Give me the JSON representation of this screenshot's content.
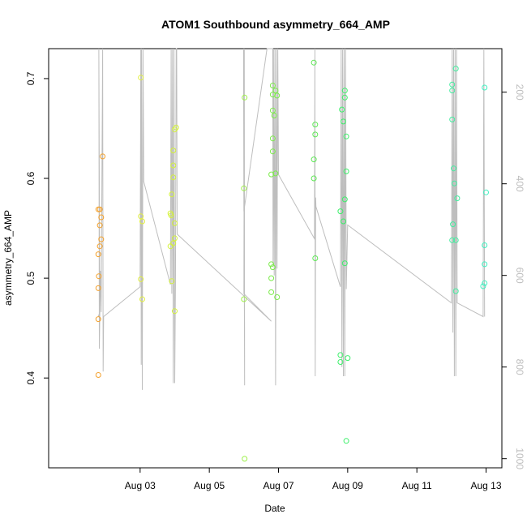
{
  "chart_data": {
    "type": "scatter",
    "title": "ATOM1 Southbound asymmetry_664_AMP",
    "xlabel": "Date",
    "ylabel": "asymmetry_664_AMP",
    "xlim": [
      "2017-08-01",
      "2017-08-13"
    ],
    "ylim": [
      0.31,
      0.73
    ],
    "x_ticks": [
      "Aug 03",
      "Aug 05",
      "Aug 07",
      "Aug 09",
      "Aug 11",
      "Aug 13"
    ],
    "x_tick_dates": [
      "2017-08-03",
      "2017-08-05",
      "2017-08-07",
      "2017-08-09",
      "2017-08-11",
      "2017-08-13"
    ],
    "y_ticks": [
      "0.4",
      "0.5",
      "0.6",
      "0.7"
    ],
    "y2_ticks": [
      "200",
      "400",
      "600",
      "800",
      "1000"
    ],
    "y2_tick_values": [
      200,
      400,
      600,
      800,
      1000
    ],
    "y2lim": [
      1020,
      105
    ],
    "grid": false,
    "points": [
      {
        "d": "2017-08-01T19:00",
        "y": 0.403,
        "c": "#f4a22e"
      },
      {
        "d": "2017-08-01T19:00",
        "y": 0.459,
        "c": "#f4a22e"
      },
      {
        "d": "2017-08-01T19:00",
        "y": 0.49,
        "c": "#f4a22e"
      },
      {
        "d": "2017-08-01T19:20",
        "y": 0.502,
        "c": "#f4a22e"
      },
      {
        "d": "2017-08-01T19:00",
        "y": 0.524,
        "c": "#f4a22e"
      },
      {
        "d": "2017-08-01T20:00",
        "y": 0.532,
        "c": "#f4a22e"
      },
      {
        "d": "2017-08-01T21:00",
        "y": 0.539,
        "c": "#f4a22e"
      },
      {
        "d": "2017-08-01T20:00",
        "y": 0.553,
        "c": "#f4a22e"
      },
      {
        "d": "2017-08-01T21:00",
        "y": 0.561,
        "c": "#f4a22e"
      },
      {
        "d": "2017-08-01T19:00",
        "y": 0.569,
        "c": "#f4a22e"
      },
      {
        "d": "2017-08-01T20:00",
        "y": 0.569,
        "c": "#f4a22e"
      },
      {
        "d": "2017-08-01T22:00",
        "y": 0.622,
        "c": "#f4a22e"
      },
      {
        "d": "2017-08-03T00:30",
        "y": 0.701,
        "c": "#e2ef3f"
      },
      {
        "d": "2017-08-03T00:30",
        "y": 0.562,
        "c": "#e2ef3f"
      },
      {
        "d": "2017-08-03T01:30",
        "y": 0.557,
        "c": "#e2ef3f"
      },
      {
        "d": "2017-08-03T00:30",
        "y": 0.499,
        "c": "#e2ef3f"
      },
      {
        "d": "2017-08-03T01:30",
        "y": 0.479,
        "c": "#e2ef3f"
      },
      {
        "d": "2017-08-03T21:00",
        "y": 0.565,
        "c": "#d4f23a"
      },
      {
        "d": "2017-08-03T21:30",
        "y": 0.563,
        "c": "#d4f23a"
      },
      {
        "d": "2017-08-03T21:00",
        "y": 0.532,
        "c": "#d4f23a"
      },
      {
        "d": "2017-08-03T22:00",
        "y": 0.584,
        "c": "#d4f23a"
      },
      {
        "d": "2017-08-03T23:00",
        "y": 0.601,
        "c": "#d4f23a"
      },
      {
        "d": "2017-08-03T23:00",
        "y": 0.613,
        "c": "#d4f23a"
      },
      {
        "d": "2017-08-03T23:00",
        "y": 0.628,
        "c": "#d4f23a"
      },
      {
        "d": "2017-08-04T00:00",
        "y": 0.649,
        "c": "#d4f23a"
      },
      {
        "d": "2017-08-04T01:00",
        "y": 0.651,
        "c": "#d4f23a"
      },
      {
        "d": "2017-08-04T00:00",
        "y": 0.555,
        "c": "#d4f23a"
      },
      {
        "d": "2017-08-04T00:00",
        "y": 0.54,
        "c": "#d4f23a"
      },
      {
        "d": "2017-08-03T23:00",
        "y": 0.535,
        "c": "#d4f23a"
      },
      {
        "d": "2017-08-03T22:00",
        "y": 0.497,
        "c": "#d4f23a"
      },
      {
        "d": "2017-08-04T00:00",
        "y": 0.467,
        "c": "#d4f23a"
      },
      {
        "d": "2017-08-06T00:30",
        "y": 0.681,
        "c": "#9df048"
      },
      {
        "d": "2017-08-06T00:00",
        "y": 0.59,
        "c": "#9df048"
      },
      {
        "d": "2017-08-06T00:00",
        "y": 0.479,
        "c": "#9df048"
      },
      {
        "d": "2017-08-06T00:30",
        "y": 0.319,
        "c": "#9df048"
      },
      {
        "d": "2017-08-06T19:00",
        "y": 0.604,
        "c": "#7bec4a"
      },
      {
        "d": "2017-08-06T19:00",
        "y": 0.514,
        "c": "#7bec4a"
      },
      {
        "d": "2017-08-06T20:00",
        "y": 0.511,
        "c": "#7bec4a"
      },
      {
        "d": "2017-08-06T19:00",
        "y": 0.5,
        "c": "#7bec4a"
      },
      {
        "d": "2017-08-06T19:00",
        "y": 0.486,
        "c": "#7bec4a"
      },
      {
        "d": "2017-08-06T23:00",
        "y": 0.481,
        "c": "#7bec4a"
      },
      {
        "d": "2017-08-06T20:00",
        "y": 0.64,
        "c": "#7bec4a"
      },
      {
        "d": "2017-08-06T20:00",
        "y": 0.627,
        "c": "#7bec4a"
      },
      {
        "d": "2017-08-06T21:00",
        "y": 0.663,
        "c": "#7bec4a"
      },
      {
        "d": "2017-08-06T20:00",
        "y": 0.668,
        "c": "#7bec4a"
      },
      {
        "d": "2017-08-06T20:00",
        "y": 0.684,
        "c": "#7bec4a"
      },
      {
        "d": "2017-08-06T20:00",
        "y": 0.693,
        "c": "#7bec4a"
      },
      {
        "d": "2017-08-06T22:00",
        "y": 0.688,
        "c": "#7bec4a"
      },
      {
        "d": "2017-08-06T23:00",
        "y": 0.683,
        "c": "#7bec4a"
      },
      {
        "d": "2017-08-06T22:00",
        "y": 0.605,
        "c": "#7bec4a"
      },
      {
        "d": "2017-08-08T00:30",
        "y": 0.716,
        "c": "#5ee955"
      },
      {
        "d": "2017-08-08T01:30",
        "y": 0.654,
        "c": "#5ee955"
      },
      {
        "d": "2017-08-08T01:30",
        "y": 0.644,
        "c": "#5ee955"
      },
      {
        "d": "2017-08-08T00:30",
        "y": 0.619,
        "c": "#5ee955"
      },
      {
        "d": "2017-08-08T00:30",
        "y": 0.6,
        "c": "#5ee955"
      },
      {
        "d": "2017-08-08T01:30",
        "y": 0.52,
        "c": "#5ee955"
      },
      {
        "d": "2017-08-08T19:00",
        "y": 0.567,
        "c": "#3cf06a"
      },
      {
        "d": "2017-08-08T20:00",
        "y": 0.669,
        "c": "#3cf06a"
      },
      {
        "d": "2017-08-08T22:00",
        "y": 0.688,
        "c": "#3cf06a"
      },
      {
        "d": "2017-08-08T22:00",
        "y": 0.681,
        "c": "#3cf06a"
      },
      {
        "d": "2017-08-08T21:00",
        "y": 0.657,
        "c": "#3cf06a"
      },
      {
        "d": "2017-08-08T23:00",
        "y": 0.642,
        "c": "#3cf06a"
      },
      {
        "d": "2017-08-08T23:00",
        "y": 0.607,
        "c": "#3cf06a"
      },
      {
        "d": "2017-08-08T22:00",
        "y": 0.579,
        "c": "#3cf06a"
      },
      {
        "d": "2017-08-08T21:00",
        "y": 0.557,
        "c": "#3cf06a"
      },
      {
        "d": "2017-08-08T22:00",
        "y": 0.515,
        "c": "#3cf06a"
      },
      {
        "d": "2017-08-08T19:00",
        "y": 0.423,
        "c": "#3cf06a"
      },
      {
        "d": "2017-08-08T19:00",
        "y": 0.416,
        "c": "#3cf06a"
      },
      {
        "d": "2017-08-09T00:00",
        "y": 0.42,
        "c": "#3cf06a"
      },
      {
        "d": "2017-08-08T23:00",
        "y": 0.337,
        "c": "#3cf06a"
      },
      {
        "d": "2017-08-12T00:30",
        "y": 0.694,
        "c": "#43eea0"
      },
      {
        "d": "2017-08-12T00:30",
        "y": 0.688,
        "c": "#43eea0"
      },
      {
        "d": "2017-08-12T03:00",
        "y": 0.71,
        "c": "#43eea0"
      },
      {
        "d": "2017-08-12T00:30",
        "y": 0.659,
        "c": "#43eea0"
      },
      {
        "d": "2017-08-12T01:30",
        "y": 0.61,
        "c": "#43eea0"
      },
      {
        "d": "2017-08-12T02:00",
        "y": 0.595,
        "c": "#43eea0"
      },
      {
        "d": "2017-08-12T04:00",
        "y": 0.58,
        "c": "#43eea0"
      },
      {
        "d": "2017-08-12T01:00",
        "y": 0.554,
        "c": "#43eea0"
      },
      {
        "d": "2017-08-12T00:30",
        "y": 0.538,
        "c": "#43eea0"
      },
      {
        "d": "2017-08-12T03:00",
        "y": 0.538,
        "c": "#43eea0"
      },
      {
        "d": "2017-08-12T03:00",
        "y": 0.487,
        "c": "#43eea0"
      },
      {
        "d": "2017-08-12T23:00",
        "y": 0.691,
        "c": "#40f0c0"
      },
      {
        "d": "2017-08-13T00:00",
        "y": 0.586,
        "c": "#40f0c0"
      },
      {
        "d": "2017-08-12T23:00",
        "y": 0.533,
        "c": "#40f0c0"
      },
      {
        "d": "2017-08-12T23:00",
        "y": 0.514,
        "c": "#40f0c0"
      },
      {
        "d": "2017-08-12T23:00",
        "y": 0.495,
        "c": "#40f0c0"
      },
      {
        "d": "2017-08-12T22:00",
        "y": 0.492,
        "c": "#40f0c0"
      }
    ],
    "line_color": "#bebebe",
    "line_series": [
      [
        "2017-08-01T19:00",
        690
      ],
      [
        "2017-08-01T20:00",
        680
      ],
      [
        "2017-08-01T19:20",
        105
      ],
      [
        "2017-08-01T19:40",
        760
      ],
      [
        "2017-08-01T20:30",
        590
      ],
      [
        "2017-08-01T21:00",
        680
      ],
      [
        "2017-08-01T22:00",
        105
      ],
      [
        "2017-08-01T22:20",
        810
      ],
      [
        "2017-08-01T22:40",
        690
      ],
      [
        "2017-08-03T00:00",
        625
      ],
      [
        "2017-08-03T00:30",
        105
      ],
      [
        "2017-08-03T00:45",
        795
      ],
      [
        "2017-08-03T01:00",
        105
      ],
      [
        "2017-08-03T01:30",
        850
      ],
      [
        "2017-08-03T02:00",
        105
      ],
      [
        "2017-08-03T02:30",
        395
      ],
      [
        "2017-08-03T21:00",
        620
      ],
      [
        "2017-08-03T21:30",
        105
      ],
      [
        "2017-08-03T22:00",
        640
      ],
      [
        "2017-08-03T22:30",
        105
      ],
      [
        "2017-08-03T23:00",
        835
      ],
      [
        "2017-08-03T23:30",
        105
      ],
      [
        "2017-08-04T00:00",
        835
      ],
      [
        "2017-08-04T00:30",
        620
      ],
      [
        "2017-08-04T01:00",
        105
      ],
      [
        "2017-08-04T01:20",
        105
      ],
      [
        "2017-08-04T01:40",
        510
      ],
      [
        "2017-08-06T19:00",
        700
      ],
      [
        "2017-08-06T00:00",
        640
      ],
      [
        "2017-08-06T00:15",
        105
      ],
      [
        "2017-08-06T00:30",
        840
      ],
      [
        "2017-08-05T23:45",
        105
      ],
      [
        "2017-08-06T00:00",
        460
      ],
      [
        "2017-08-06T16:00",
        105
      ],
      [
        "2017-08-06T20:00",
        105
      ],
      [
        "2017-08-06T20:15",
        580
      ],
      [
        "2017-08-06T20:30",
        105
      ],
      [
        "2017-08-06T21:00",
        600
      ],
      [
        "2017-08-06T21:30",
        105
      ],
      [
        "2017-08-06T22:00",
        840
      ],
      [
        "2017-08-06T22:30",
        105
      ],
      [
        "2017-08-06T23:00",
        585
      ],
      [
        "2017-08-06T23:30",
        105
      ],
      [
        "2017-08-07T00:00",
        380
      ],
      [
        "2017-08-08T01:00",
        520
      ],
      [
        "2017-08-08T01:15",
        105
      ],
      [
        "2017-08-08T01:30",
        820
      ],
      [
        "2017-08-08T01:45",
        430
      ],
      [
        "2017-08-08T02:00",
        450
      ],
      [
        "2017-08-08T19:00",
        625
      ],
      [
        "2017-08-08T19:30",
        105
      ],
      [
        "2017-08-08T20:00",
        800
      ],
      [
        "2017-08-08T20:30",
        105
      ],
      [
        "2017-08-08T21:00",
        820
      ],
      [
        "2017-08-08T21:30",
        105
      ],
      [
        "2017-08-08T22:00",
        820
      ],
      [
        "2017-08-08T22:30",
        105
      ],
      [
        "2017-08-08T23:00",
        630
      ],
      [
        "2017-08-09T00:00",
        490
      ],
      [
        "2017-08-12T00:00",
        660
      ],
      [
        "2017-08-12T00:30",
        105
      ],
      [
        "2017-08-12T01:00",
        725
      ],
      [
        "2017-08-12T01:30",
        105
      ],
      [
        "2017-08-12T02:00",
        820
      ],
      [
        "2017-08-12T02:30",
        105
      ],
      [
        "2017-08-12T03:00",
        820
      ],
      [
        "2017-08-12T03:30",
        105
      ],
      [
        "2017-08-12T04:00",
        660
      ],
      [
        "2017-08-12T22:00",
        690
      ],
      [
        "2017-08-12T22:30",
        105
      ],
      [
        "2017-08-12T23:00",
        690
      ]
    ]
  }
}
